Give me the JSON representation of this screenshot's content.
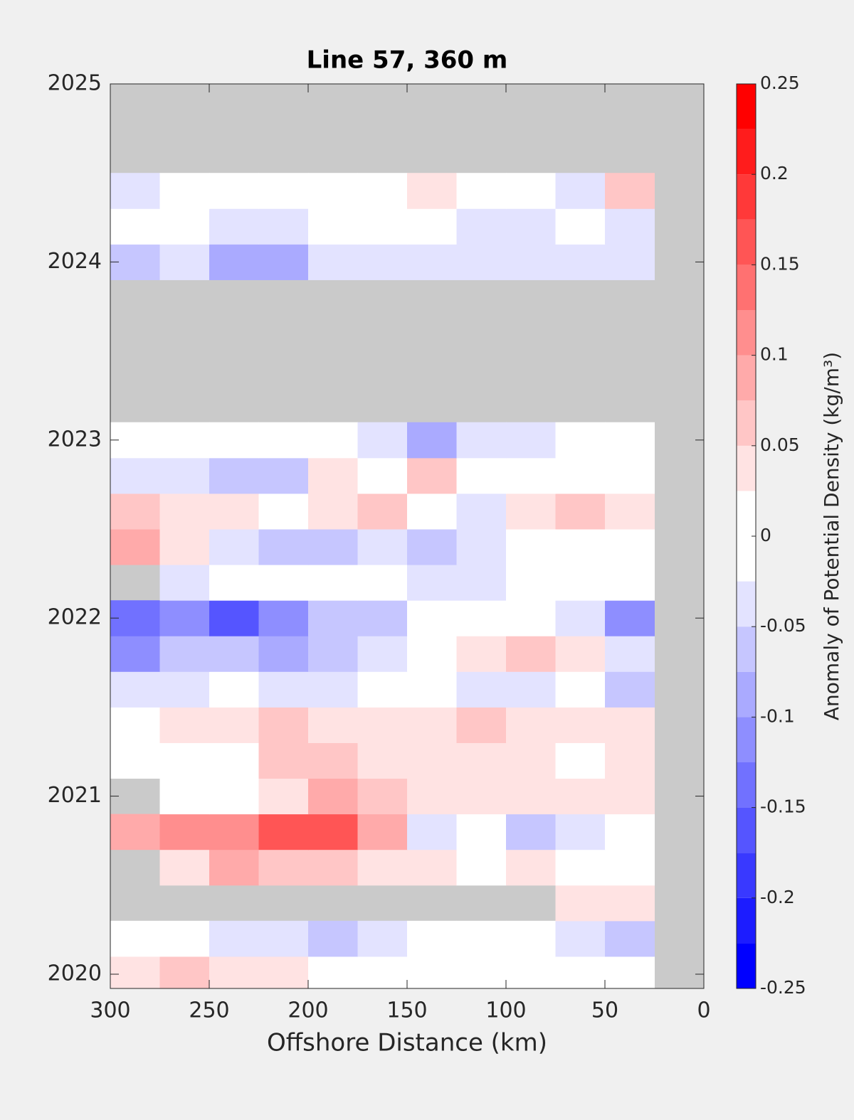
{
  "chart_data": {
    "type": "heatmap",
    "title": "Line 57, 360 m",
    "x_label": "Offshore Distance (km)",
    "colorbar_label": "Anomaly of Potential Density (kg/m³)",
    "x": [
      287.5,
      262.5,
      237.5,
      212.5,
      187.5,
      162.5,
      137.5,
      112.5,
      87.5,
      62.5,
      37.5
    ],
    "y": [
      2020.0,
      2020.2,
      2020.4,
      2020.6,
      2020.8,
      2021.0,
      2021.2,
      2021.4,
      2021.6,
      2021.8,
      2022.0,
      2022.2,
      2022.4,
      2022.6,
      2022.8,
      2023.0,
      2023.2,
      2023.4,
      2023.6,
      2023.8,
      2024.0,
      2024.2,
      2024.4
    ],
    "z": [
      [
        0.04,
        0.06,
        0.04,
        0.03,
        0.02,
        0,
        0,
        0,
        0,
        0,
        0
      ],
      [
        0,
        0,
        -0.03,
        -0.03,
        -0.05,
        -0.03,
        0,
        0,
        0,
        -0.04,
        -0.06
      ],
      [
        null,
        null,
        null,
        null,
        null,
        null,
        null,
        null,
        null,
        0.04,
        0.04
      ],
      [
        null,
        0.04,
        0.08,
        0.05,
        0.06,
        0.04,
        0.03,
        0.02,
        0.03,
        0,
        0
      ],
      [
        0.09,
        0.11,
        0.12,
        0.15,
        0.17,
        0.09,
        -0.03,
        0,
        -0.05,
        -0.04,
        0
      ],
      [
        null,
        0,
        -0.02,
        0.04,
        0.08,
        0.05,
        0.04,
        0.03,
        0.04,
        0.03,
        0.03
      ],
      [
        0,
        0,
        0.02,
        0.05,
        0.05,
        0.04,
        0.04,
        0.04,
        0.03,
        0,
        0.03
      ],
      [
        0.02,
        0.04,
        0.03,
        0.05,
        0.03,
        0.03,
        0.04,
        0.05,
        0.03,
        0.03,
        0.03
      ],
      [
        -0.03,
        -0.03,
        -0.02,
        -0.03,
        -0.04,
        -0.02,
        0,
        -0.04,
        -0.03,
        0.02,
        -0.05
      ],
      [
        -0.1,
        -0.06,
        -0.07,
        -0.08,
        -0.06,
        -0.03,
        0,
        0.04,
        0.05,
        0.03,
        -0.03
      ],
      [
        -0.14,
        -0.12,
        -0.16,
        -0.1,
        -0.06,
        -0.05,
        0,
        0,
        -0.02,
        -0.03,
        -0.12
      ],
      [
        null,
        -0.03,
        0,
        0,
        0,
        0.02,
        -0.03,
        -0.03,
        0,
        0,
        0
      ],
      [
        0.08,
        0.04,
        -0.03,
        -0.07,
        -0.06,
        -0.03,
        -0.06,
        -0.04,
        0,
        0,
        0
      ],
      [
        0.06,
        0.04,
        0.03,
        0,
        0.04,
        0.05,
        0,
        -0.03,
        0.04,
        0.07,
        0.03
      ],
      [
        -0.03,
        -0.04,
        -0.06,
        -0.05,
        0.03,
        0,
        0.05,
        0,
        -0.02,
        0,
        0
      ],
      [
        0,
        0,
        0,
        0,
        -0.02,
        -0.04,
        -0.08,
        -0.04,
        -0.03,
        0,
        0
      ],
      [
        null,
        null,
        null,
        null,
        null,
        null,
        null,
        null,
        null,
        null,
        null
      ],
      [
        null,
        null,
        null,
        null,
        null,
        null,
        null,
        null,
        null,
        null,
        null
      ],
      [
        null,
        null,
        null,
        null,
        null,
        null,
        null,
        null,
        null,
        null,
        null
      ],
      [
        null,
        null,
        null,
        null,
        null,
        null,
        null,
        null,
        null,
        null,
        null
      ],
      [
        -0.07,
        -0.04,
        -0.08,
        -0.09,
        -0.04,
        -0.03,
        -0.03,
        -0.04,
        -0.04,
        -0.04,
        -0.03
      ],
      [
        0,
        0,
        -0.03,
        -0.04,
        0,
        0,
        0,
        -0.03,
        -0.03,
        -0.02,
        -0.03
      ],
      [
        -0.04,
        0,
        0,
        0,
        0,
        0,
        0.03,
        0,
        0,
        -0.03,
        0.05
      ]
    ],
    "xlim": [
      300,
      0
    ],
    "xticks": [
      300,
      250,
      200,
      150,
      100,
      50,
      0
    ],
    "ylim": [
      2019.92,
      2025
    ],
    "yticks": [
      2020,
      2021,
      2022,
      2023,
      2024,
      2025
    ],
    "clim": [
      -0.25,
      0.25
    ],
    "level_step": 0.025,
    "cticks": [
      -0.25,
      -0.2,
      -0.15,
      -0.1,
      -0.05,
      0,
      0.05,
      0.1,
      0.15,
      0.2,
      0.25
    ],
    "low_color": "#0000ff",
    "mid_color": "#ffffff",
    "high_color": "#ff0000",
    "missing_color": "#cacaca"
  }
}
